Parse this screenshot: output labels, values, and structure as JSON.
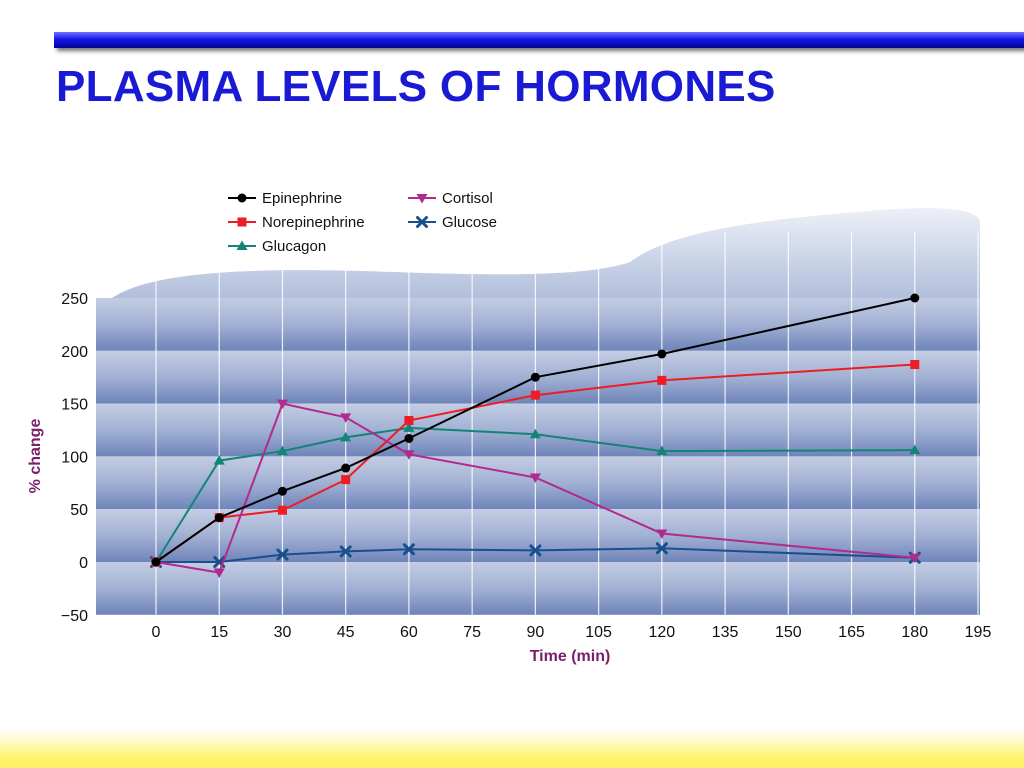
{
  "slide": {
    "title": "PLASMA LEVELS OF HORMONES"
  },
  "colors": {
    "title": "#1a1ad4",
    "axis_label": "#7a1f6b",
    "Epinephrine": "#000000",
    "Norepinephrine": "#ee1c25",
    "Glucagon": "#128577",
    "Cortisol": "#b2298f",
    "Glucose": "#1a4f8e"
  },
  "chart_data": {
    "type": "line",
    "title": "",
    "xlabel": "Time (min)",
    "ylabel": "% change",
    "xlim": [
      0,
      195
    ],
    "ylim": [
      -50,
      250
    ],
    "x_ticks": [
      0,
      15,
      30,
      45,
      60,
      75,
      90,
      105,
      120,
      135,
      150,
      165,
      180,
      195
    ],
    "y_ticks": [
      -50,
      0,
      50,
      100,
      150,
      200,
      250
    ],
    "y_tick_labels": [
      "−50",
      "0",
      "50",
      "100",
      "150",
      "200",
      "250"
    ],
    "grid": "vertical lines at each x tick, horizontal bands every 50",
    "legend_position": "top-left",
    "series": [
      {
        "name": "Epinephrine",
        "marker": "circle",
        "x": [
          0,
          15,
          30,
          45,
          60,
          90,
          120,
          180
        ],
        "y": [
          0,
          42,
          67,
          89,
          117,
          175,
          197,
          250
        ]
      },
      {
        "name": "Norepinephrine",
        "marker": "square",
        "x": [
          0,
          15,
          30,
          45,
          60,
          90,
          120,
          180
        ],
        "y": [
          0,
          42,
          49,
          78,
          134,
          158,
          172,
          187
        ]
      },
      {
        "name": "Glucagon",
        "marker": "triangle-up",
        "x": [
          0,
          15,
          30,
          45,
          60,
          90,
          120,
          180
        ],
        "y": [
          0,
          96,
          105,
          118,
          127,
          121,
          105,
          106
        ]
      },
      {
        "name": "Cortisol",
        "marker": "triangle-down",
        "x": [
          0,
          15,
          30,
          45,
          60,
          90,
          120,
          180
        ],
        "y": [
          0,
          -10,
          150,
          137,
          102,
          80,
          27,
          4
        ]
      },
      {
        "name": "Glucose",
        "marker": "x",
        "x": [
          0,
          15,
          30,
          45,
          60,
          90,
          120,
          180
        ],
        "y": [
          0,
          0,
          7,
          10,
          12,
          11,
          13,
          4
        ]
      }
    ]
  }
}
